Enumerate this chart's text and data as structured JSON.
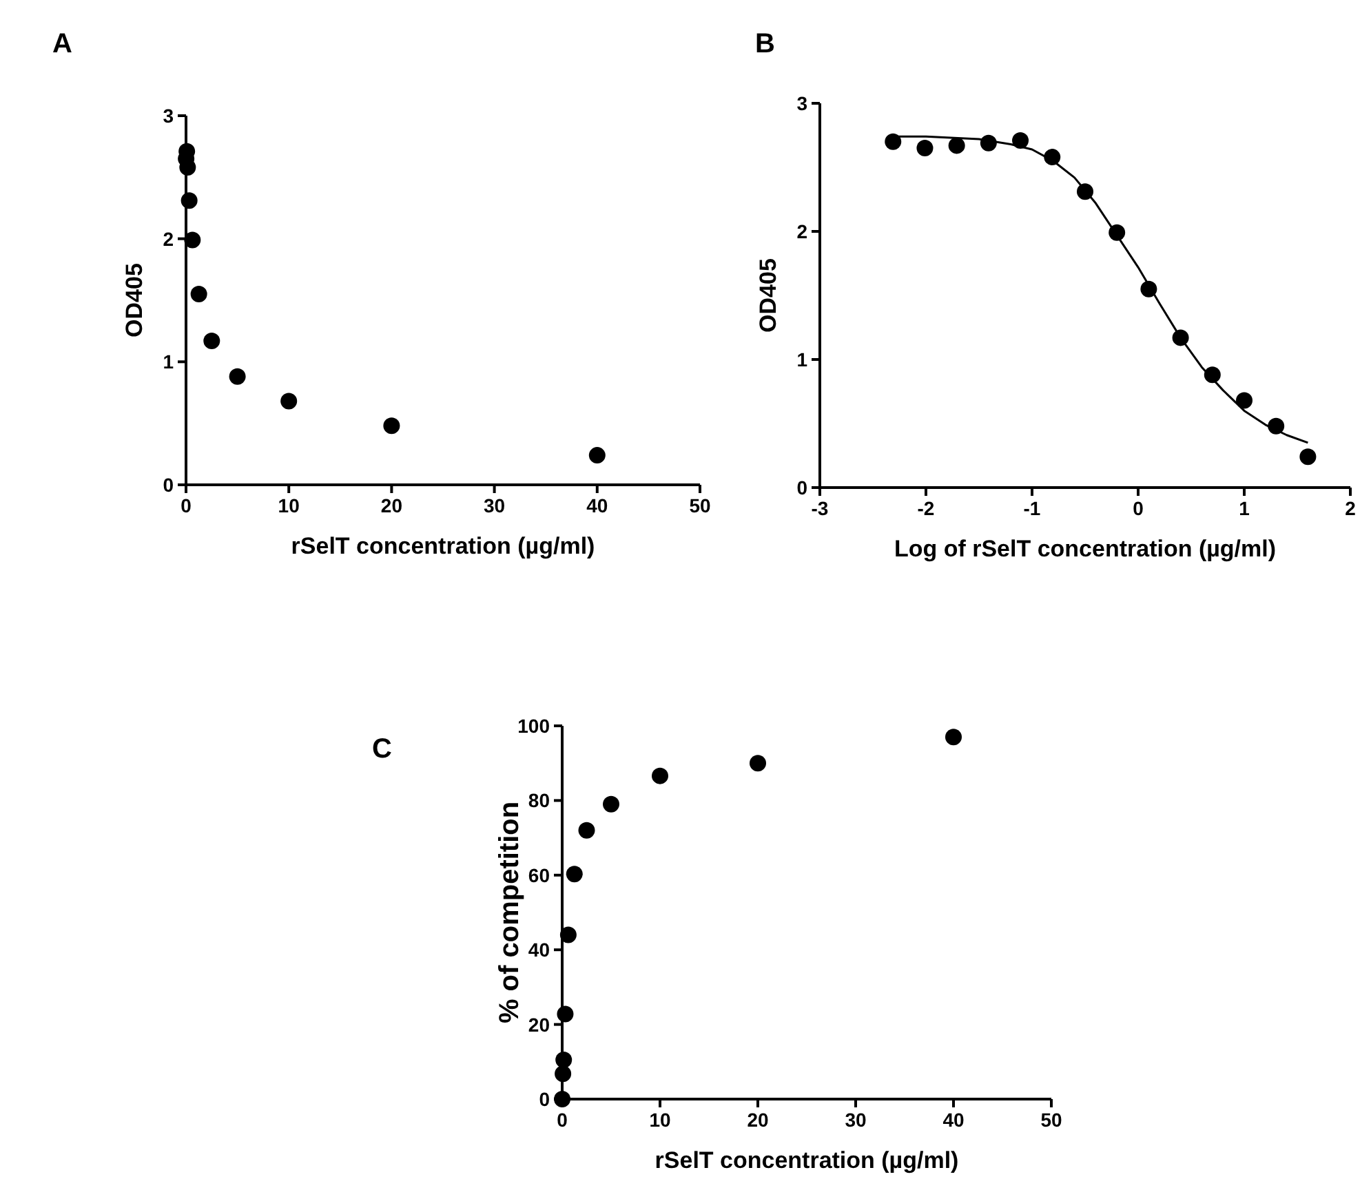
{
  "chart_data": [
    {
      "type": "scatter",
      "title": "A",
      "xlabel": "rSelT concentration (µg/ml)",
      "ylabel": "OD405",
      "marker": "circle",
      "xlim": [
        0,
        50
      ],
      "xticks": [
        0,
        10,
        20,
        30,
        40,
        50
      ],
      "ylim": [
        0,
        3
      ],
      "yticks": [
        0,
        1,
        2,
        3
      ],
      "grid": false,
      "series": [
        {
          "color": "#000000",
          "x": [
            40,
            20,
            10,
            5,
            2.5,
            1.25,
            0.625,
            0.3125,
            0.156,
            0.078,
            0.0098
          ],
          "values": [
            0.24,
            0.48,
            0.68,
            0.88,
            1.17,
            1.55,
            1.99,
            2.31,
            2.58,
            2.71,
            2.65
          ]
        }
      ]
    },
    {
      "type": "scatter",
      "title": "B",
      "xlabel": "Log of rSelT concentration (µg/ml)",
      "ylabel": "OD405",
      "marker": "circle",
      "xlim": [
        -3,
        2
      ],
      "xticks": [
        -3,
        -2,
        -1,
        0,
        1,
        2
      ],
      "ylim": [
        0,
        3
      ],
      "yticks": [
        0,
        1,
        2,
        3
      ],
      "grid": false,
      "series": [
        {
          "color": "#000000",
          "x": [
            1.6,
            1.3,
            1.0,
            0.7,
            0.4,
            0.1,
            -0.2,
            -0.5,
            -0.81,
            -1.11,
            -1.41,
            -1.71,
            -2.01,
            -2.31
          ],
          "values": [
            0.24,
            0.48,
            0.68,
            0.88,
            1.17,
            1.55,
            1.99,
            2.31,
            2.58,
            2.71,
            2.69,
            2.67,
            2.65,
            2.7
          ]
        },
        {
          "type": "line",
          "color": "#000000",
          "line_style": "solid",
          "marker": "none",
          "x": [
            -2.3,
            -2,
            -1.5,
            -1.2,
            -1,
            -0.8,
            -0.6,
            -0.4,
            -0.2,
            0,
            0.2,
            0.4,
            0.6,
            0.8,
            1,
            1.2,
            1.4,
            1.6
          ],
          "values": [
            2.74,
            2.74,
            2.72,
            2.68,
            2.64,
            2.55,
            2.42,
            2.22,
            1.97,
            1.72,
            1.44,
            1.17,
            0.94,
            0.76,
            0.6,
            0.49,
            0.41,
            0.35
          ]
        }
      ]
    },
    {
      "type": "scatter",
      "title": "C",
      "xlabel": "rSelT concentration (µg/ml)",
      "ylabel": "% of competition",
      "marker": "circle",
      "xlim": [
        0,
        50
      ],
      "xticks": [
        0,
        10,
        20,
        30,
        40,
        50
      ],
      "ylim": [
        0,
        100
      ],
      "yticks": [
        0,
        20,
        40,
        60,
        80,
        100
      ],
      "grid": false,
      "series": [
        {
          "color": "#000000",
          "x": [
            40,
            20,
            10,
            5,
            2.5,
            1.25,
            0.625,
            0.3125,
            0.156,
            0.078,
            0.0049
          ],
          "values": [
            97,
            90,
            86.6,
            79,
            72,
            60.3,
            44,
            22.8,
            10.5,
            6.8,
            0
          ]
        }
      ]
    }
  ]
}
